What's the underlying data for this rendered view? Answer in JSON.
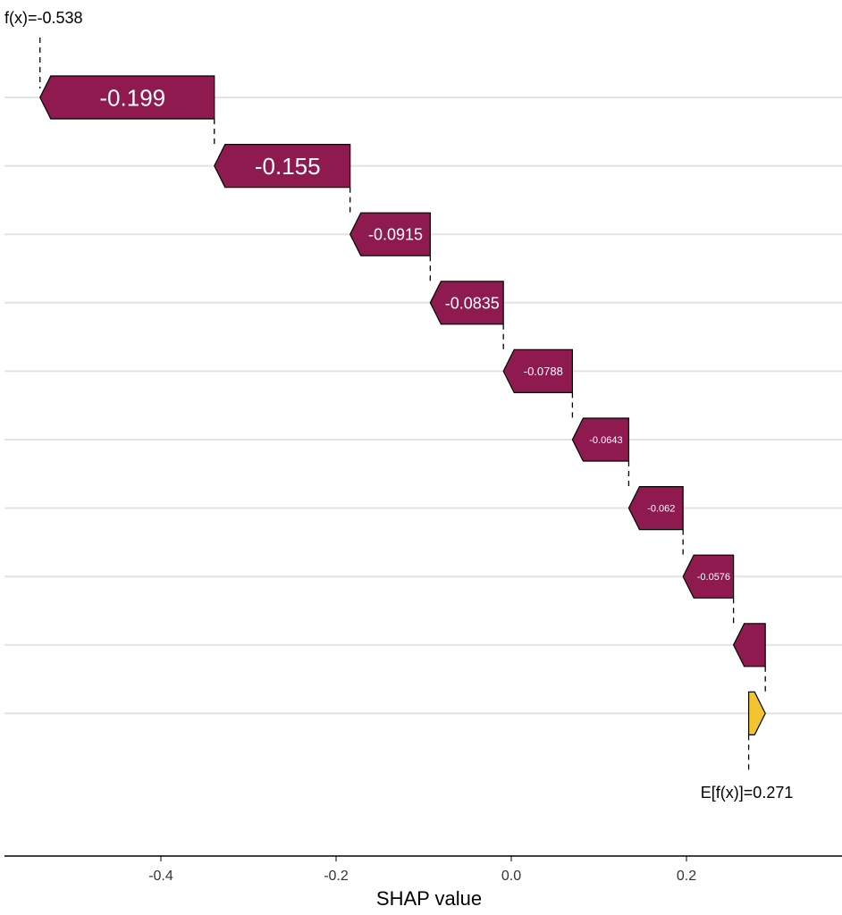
{
  "chart_data": {
    "type": "waterfall",
    "xlabel": "SHAP value",
    "ylabel": "",
    "xlim": [
      -0.58,
      0.375
    ],
    "xticks": [
      -0.4,
      -0.2,
      0.0,
      0.2
    ],
    "xtick_labels": [
      "-0.4",
      "-0.2",
      "0.0",
      "0.2"
    ],
    "grid": "horizontal",
    "baseline": 0.271,
    "baseline_label": "E[f(x)]=0.271",
    "prediction": -0.538,
    "prediction_label": "f(x)=-0.538",
    "contributions": [
      {
        "value": -0.199,
        "label": "-0.199"
      },
      {
        "value": -0.155,
        "label": "-0.155"
      },
      {
        "value": -0.0915,
        "label": "-0.0915"
      },
      {
        "value": -0.0835,
        "label": "-0.0835"
      },
      {
        "value": -0.0788,
        "label": "-0.0788"
      },
      {
        "value": -0.0643,
        "label": "-0.0643"
      },
      {
        "value": -0.062,
        "label": "-0.062"
      },
      {
        "value": -0.0576,
        "label": "-0.0576"
      },
      {
        "value": -0.0363,
        "label": ""
      },
      {
        "value": 0.019,
        "label": ""
      }
    ],
    "colors": {
      "negative": "#8F1A4F",
      "positive": "#F4C430",
      "grid": "#E3E3E3"
    }
  }
}
